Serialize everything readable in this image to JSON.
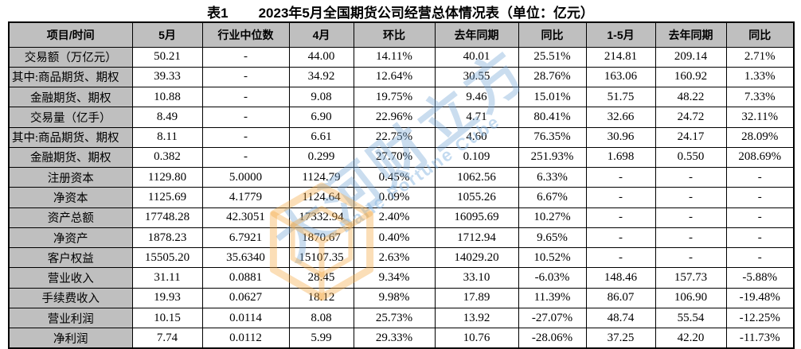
{
  "title": {
    "label": "表1",
    "text": "2023年5月全国期货公司经营总体情况表（单位：亿元）"
  },
  "watermark": {
    "cn": "大河财立方",
    "en": "DaHe Fortune Cube",
    "blue": "#8ab8e2",
    "orange": "#f5a742"
  },
  "colors": {
    "header_bg": "#bfbfbf",
    "label_column_bg": "#bfbfbf",
    "border": "#000000",
    "text": "#000000"
  },
  "chart_data": {
    "type": "table",
    "title": "表1 2023年5月全国期货公司经营总体情况表（单位：亿元）",
    "columns": [
      "项目/时间",
      "5月",
      "行业中位数",
      "4月",
      "环比",
      "去年同期",
      "同比",
      "1-5月",
      "去年同期",
      "同比"
    ],
    "rows": [
      {
        "label": "交易额（万亿元）",
        "align": "center",
        "cells": [
          "50.21",
          "-",
          "44.00",
          "14.11%",
          "40.01",
          "25.51%",
          "214.81",
          "209.14",
          "2.71%"
        ]
      },
      {
        "label": "其中:商品期货、期权",
        "align": "left",
        "cells": [
          "39.33",
          "-",
          "34.92",
          "12.64%",
          "30.55",
          "28.76%",
          "163.06",
          "160.92",
          "1.33%"
        ]
      },
      {
        "label": "金融期货、期权",
        "align": "center",
        "cells": [
          "10.88",
          "-",
          "9.08",
          "19.75%",
          "9.46",
          "15.01%",
          "51.75",
          "48.22",
          "7.33%"
        ]
      },
      {
        "label": "交易量（亿手）",
        "align": "center",
        "cells": [
          "8.49",
          "-",
          "6.90",
          "22.96%",
          "4.71",
          "80.41%",
          "32.66",
          "24.72",
          "32.11%"
        ]
      },
      {
        "label": "其中:商品期货、期权",
        "align": "left",
        "cells": [
          "8.11",
          "-",
          "6.61",
          "22.75%",
          "4.60",
          "76.35%",
          "30.96",
          "24.17",
          "28.09%"
        ]
      },
      {
        "label": "金融期货、期权",
        "align": "center",
        "cells": [
          "0.382",
          "-",
          "0.299",
          "27.70%",
          "0.109",
          "251.93%",
          "1.698",
          "0.550",
          "208.69%"
        ]
      },
      {
        "label": "注册资本",
        "align": "center",
        "cells": [
          "1129.80",
          "5.0000",
          "1124.79",
          "0.45%",
          "1062.56",
          "6.33%",
          "-",
          "-",
          "-"
        ]
      },
      {
        "label": "净资本",
        "align": "center",
        "cells": [
          "1125.69",
          "4.1779",
          "1124.64",
          "0.09%",
          "1055.26",
          "6.67%",
          "-",
          "-",
          "-"
        ]
      },
      {
        "label": "资产总额",
        "align": "center",
        "cells": [
          "17748.28",
          "42.3051",
          "17332.94",
          "2.40%",
          "16095.69",
          "10.27%",
          "-",
          "-",
          "-"
        ]
      },
      {
        "label": "净资产",
        "align": "center",
        "cells": [
          "1878.23",
          "6.7921",
          "1870.67",
          "0.40%",
          "1712.94",
          "9.65%",
          "-",
          "-",
          "-"
        ]
      },
      {
        "label": "客户权益",
        "align": "center",
        "cells": [
          "15505.20",
          "35.6340",
          "15107.35",
          "2.63%",
          "14029.20",
          "10.52%",
          "-",
          "-",
          "-"
        ]
      },
      {
        "label": "营业收入",
        "align": "center",
        "cells": [
          "31.11",
          "0.0881",
          "28.45",
          "9.34%",
          "33.10",
          "-6.03%",
          "148.46",
          "157.73",
          "-5.88%"
        ]
      },
      {
        "label": "手续费收入",
        "align": "center",
        "cells": [
          "19.93",
          "0.0627",
          "18.12",
          "9.98%",
          "17.89",
          "11.39%",
          "86.07",
          "106.90",
          "-19.48%"
        ]
      },
      {
        "label": "营业利润",
        "align": "center",
        "cells": [
          "10.15",
          "0.0114",
          "8.08",
          "25.73%",
          "13.92",
          "-27.07%",
          "48.74",
          "55.54",
          "-12.25%"
        ]
      },
      {
        "label": "净利润",
        "align": "center",
        "cells": [
          "7.74",
          "0.0112",
          "5.99",
          "29.33%",
          "10.76",
          "-28.06%",
          "37.25",
          "42.20",
          "-11.73%"
        ]
      }
    ]
  }
}
